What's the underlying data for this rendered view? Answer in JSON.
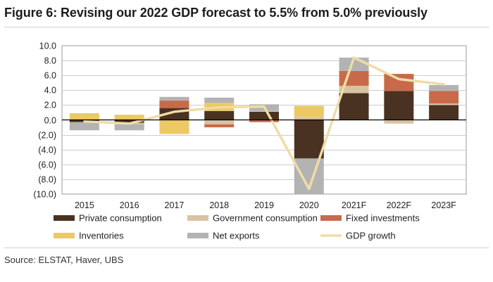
{
  "title": "Figure 6: Revising our 2022 GDP forecast to 5.5% from 5.0% previously",
  "source": "Source: ELSTAT, Haver, UBS",
  "chart_data": {
    "type": "bar",
    "stacked": true,
    "categories": [
      "2015",
      "2016",
      "2017",
      "2018",
      "2019",
      "2020",
      "2021F",
      "2022F",
      "2023F"
    ],
    "ylim": [
      -10,
      10
    ],
    "yticks": [
      10,
      8,
      6,
      4,
      2,
      0,
      -2,
      -4,
      -6,
      -8,
      -10
    ],
    "ytick_labels": [
      "10.0",
      "8.0",
      "6.0",
      "4.0",
      "2.0",
      "0.0",
      "(2.0)",
      "(4.0)",
      "(6.0)",
      "(8.0)",
      "(10.0)"
    ],
    "grid": true,
    "legend_position": "bottom",
    "series": [
      {
        "name": "Private consumption",
        "color": "#4a3222",
        "values": [
          -0.3,
          -0.4,
          1.6,
          1.2,
          1.1,
          -5.2,
          3.6,
          3.9,
          2.0
        ]
      },
      {
        "name": "Government consumption",
        "color": "#d9c2a4",
        "values": [
          0.0,
          -0.2,
          0.0,
          -0.6,
          0.1,
          0.4,
          1.0,
          -0.5,
          0.2
        ]
      },
      {
        "name": "Fixed investments",
        "color": "#c86a4a",
        "values": [
          0.0,
          0.0,
          1.0,
          -0.4,
          -0.3,
          0.0,
          2.0,
          2.3,
          1.7
        ]
      },
      {
        "name": "Inventories",
        "color": "#ecc964",
        "values": [
          0.9,
          0.7,
          -1.9,
          1.1,
          0.0,
          1.5,
          0.0,
          0.0,
          0.0
        ]
      },
      {
        "name": "Net exports",
        "color": "#b3b3b3",
        "values": [
          -1.1,
          -0.8,
          0.5,
          0.7,
          0.9,
          -4.8,
          1.8,
          0.0,
          0.8
        ]
      },
      {
        "name": "GDP growth",
        "type": "line",
        "color": "#efdca6",
        "values": [
          -0.2,
          -0.5,
          1.1,
          1.7,
          1.8,
          -9.3,
          8.4,
          5.5,
          4.8
        ]
      }
    ]
  }
}
